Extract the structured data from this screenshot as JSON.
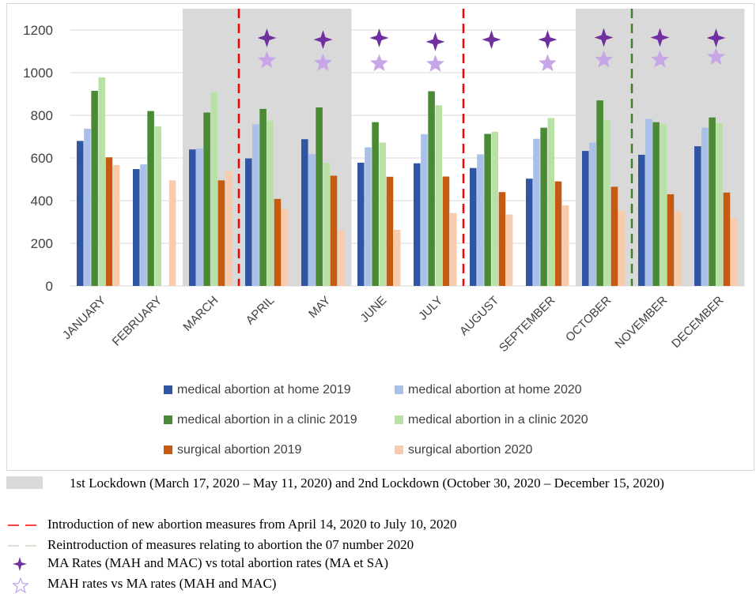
{
  "chart_data": {
    "type": "bar",
    "categories": [
      "JANUARY",
      "FEBRUARY",
      "MARCH",
      "APRIL",
      "MAY",
      "JUNE",
      "JULY",
      "AUGUST",
      "SEPTEMBER",
      "OCTOBER",
      "NOVEMBER",
      "DECEMBER"
    ],
    "ylim": [
      0,
      1200
    ],
    "yticks": [
      0,
      200,
      400,
      600,
      800,
      1000,
      1200
    ],
    "grid": true,
    "series": [
      {
        "name": "medical abortion at home 2019",
        "color": "#2f55a4",
        "values": [
          680,
          548,
          640,
          598,
          688,
          578,
          575,
          553,
          503,
          633,
          615,
          655
        ]
      },
      {
        "name": "medical abortion at home 2020",
        "color": "#a9c0e8",
        "values": [
          737,
          570,
          645,
          758,
          618,
          650,
          712,
          617,
          690,
          672,
          783,
          742
        ]
      },
      {
        "name": "medical abortion in a clinic 2019",
        "color": "#4a8a35",
        "values": [
          915,
          820,
          813,
          830,
          837,
          768,
          913,
          713,
          742,
          870,
          768,
          790
        ]
      },
      {
        "name": "medical abortion in a clinic 2020",
        "color": "#b9e0a5",
        "values": [
          978,
          748,
          908,
          775,
          578,
          672,
          847,
          723,
          787,
          777,
          760,
          763
        ]
      },
      {
        "name": "surgical abortion 2019",
        "color": "#c55a11",
        "values": [
          603,
          null,
          495,
          408,
          517,
          512,
          513,
          440,
          490,
          465,
          430,
          438
        ]
      },
      {
        "name": "surgical abortion 2020",
        "color": "#f8cbad",
        "values": [
          567,
          495,
          537,
          360,
          260,
          263,
          342,
          335,
          378,
          352,
          350,
          317
        ]
      }
    ],
    "legend_pairs": [
      [
        0,
        1
      ],
      [
        2,
        3
      ],
      [
        4,
        5
      ]
    ],
    "lockdown_shading_months": [
      2,
      3,
      4,
      9,
      10,
      11
    ],
    "lockdown_color": "#d9d9d9",
    "red_dashed_lines_between": [
      [
        2,
        3
      ],
      [
        6,
        7
      ]
    ],
    "red_dashed_color": "#ff0000",
    "green_dashed_line_between": [
      9,
      10
    ],
    "green_dashed_color": "#3f7f2a",
    "cross_markers": {
      "color": "#7030a0",
      "values": [
        null,
        null,
        null,
        1163,
        1155,
        1163,
        1145,
        1155,
        1155,
        1165,
        1165,
        1163
      ]
    },
    "star_markers": {
      "color": "#c7a6e8",
      "values": [
        null,
        null,
        null,
        1057,
        1045,
        1043,
        1040,
        null,
        1043,
        1060,
        1060,
        1073
      ]
    }
  },
  "notes": {
    "lockdown": "1st Lockdown (March 17, 2020 – May 11, 2020) and 2nd Lockdown (October 30, 2020 – December 15, 2020)",
    "red_lines": "Introduction of new abortion measures from April 14, 2020 to July 10, 2020",
    "green_line": "Reintroduction of measures relating to abortion the 07 number 2020",
    "cross": "MA Rates (MAH and MAC) vs total abortion rates (MA et SA)",
    "star": "MAH rates vs MA rates (MAH and MAC)"
  }
}
